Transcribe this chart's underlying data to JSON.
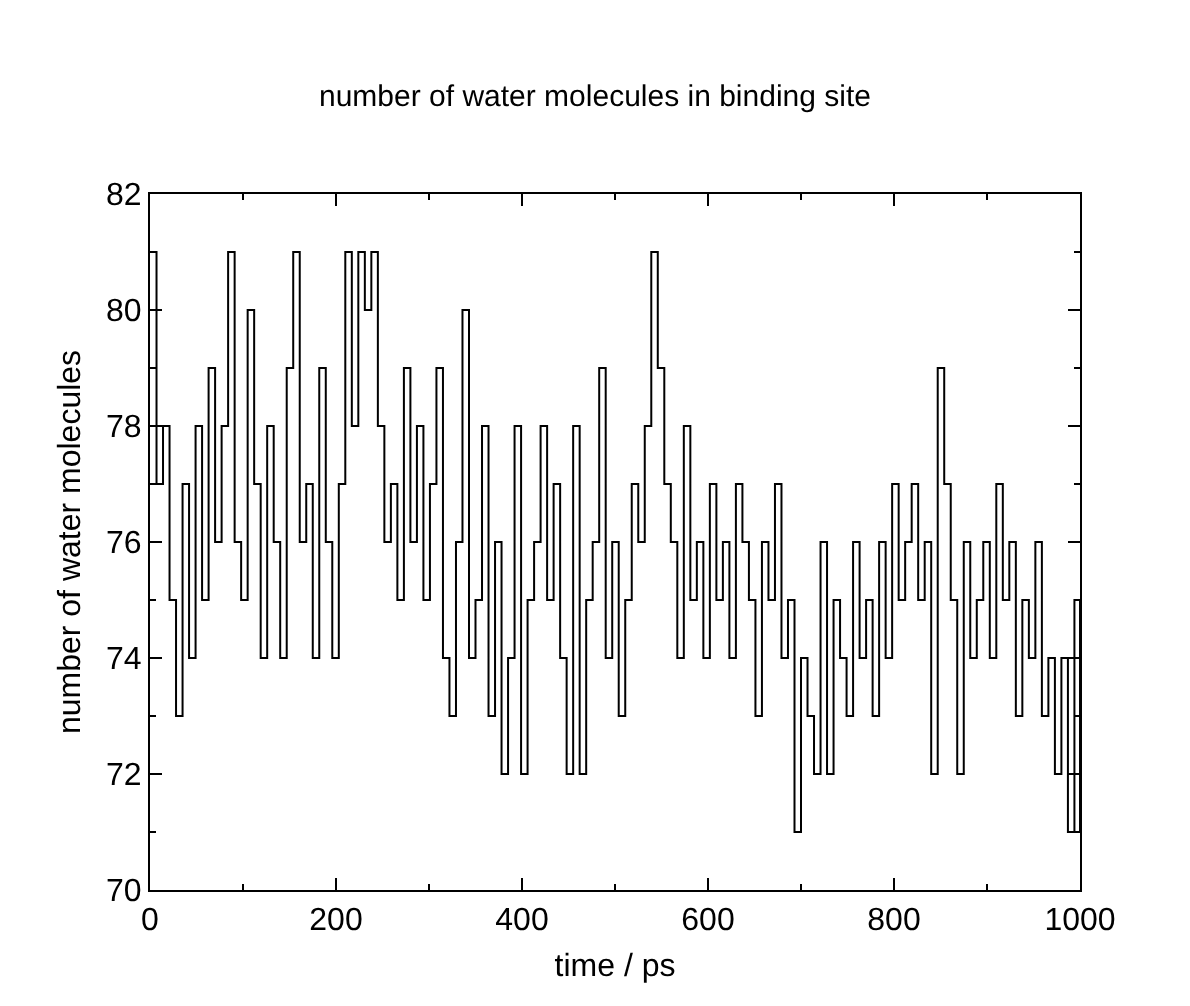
{
  "chart_data": {
    "type": "step",
    "title": "number of water molecules in binding site",
    "xlabel": "time / ps",
    "ylabel": "number of water molecules",
    "x": [
      0,
      7,
      14,
      21,
      28,
      35,
      42,
      49,
      56,
      63,
      70,
      77,
      84,
      91,
      98,
      105,
      112,
      119,
      126,
      133,
      140,
      147,
      154,
      161,
      168,
      175,
      182,
      189,
      196,
      203,
      210,
      217,
      224,
      231,
      238,
      245,
      252,
      259,
      266,
      273,
      280,
      287,
      294,
      301,
      308,
      315,
      322,
      329,
      336,
      343,
      350,
      357,
      364,
      371,
      378,
      385,
      392,
      399,
      406,
      413,
      420,
      427,
      434,
      441,
      448,
      455,
      462,
      469,
      476,
      483,
      490,
      497,
      504,
      511,
      518,
      525,
      532,
      539,
      546,
      553,
      560,
      567,
      574,
      581,
      588,
      595,
      602,
      609,
      616,
      623,
      630,
      637,
      644,
      651,
      658,
      665,
      672,
      679,
      686,
      693,
      700,
      707,
      714,
      721,
      728,
      735,
      742,
      749,
      756,
      763,
      770,
      777,
      784,
      791,
      798,
      805,
      812,
      819,
      826,
      833,
      840,
      847,
      854,
      861,
      868,
      875,
      882,
      889,
      896,
      903,
      910,
      917,
      924,
      931,
      938,
      945,
      952,
      959,
      966,
      973,
      980,
      987,
      994,
      1000
    ],
    "series": [
      {
        "color": "#000000",
        "values": [
          81,
          77,
          78,
          75,
          73,
          77,
          74,
          78,
          75,
          79,
          76,
          78,
          81,
          76,
          75,
          80,
          77,
          74,
          78,
          76,
          74,
          79,
          81,
          76,
          77,
          74,
          79,
          76,
          74,
          77,
          81,
          78,
          81,
          80,
          81,
          78,
          76,
          77,
          75,
          79,
          76,
          78,
          75,
          77,
          79,
          74,
          73,
          76,
          80,
          74,
          75,
          78,
          73,
          76,
          72,
          74,
          78,
          72,
          75,
          76,
          78,
          75,
          77,
          74,
          72,
          78,
          72,
          75,
          76,
          79,
          74,
          76,
          73,
          75,
          77,
          76,
          78,
          81,
          79,
          77,
          76,
          74,
          78,
          75,
          76,
          74,
          77,
          75,
          76,
          74,
          77,
          76,
          75,
          73,
          76,
          75,
          77,
          74,
          75,
          71,
          74,
          73,
          72,
          76,
          72,
          75,
          74,
          73,
          76,
          74,
          75,
          73,
          76,
          74,
          77,
          75,
          76,
          77,
          75,
          76,
          72,
          79,
          77,
          75,
          72,
          76,
          74,
          75,
          76,
          74,
          77,
          75,
          76,
          73,
          75,
          74,
          76,
          73,
          74,
          72,
          74,
          71,
          75,
          71
        ]
      }
    ],
    "xlim": [
      0,
      1000
    ],
    "xticks": [
      0,
      200,
      400,
      600,
      800,
      1000
    ],
    "ylim": [
      70,
      82
    ],
    "yticks": [
      70,
      72,
      74,
      76,
      78,
      80,
      82
    ],
    "legend": false,
    "marker": "none",
    "line_style": "solid"
  }
}
